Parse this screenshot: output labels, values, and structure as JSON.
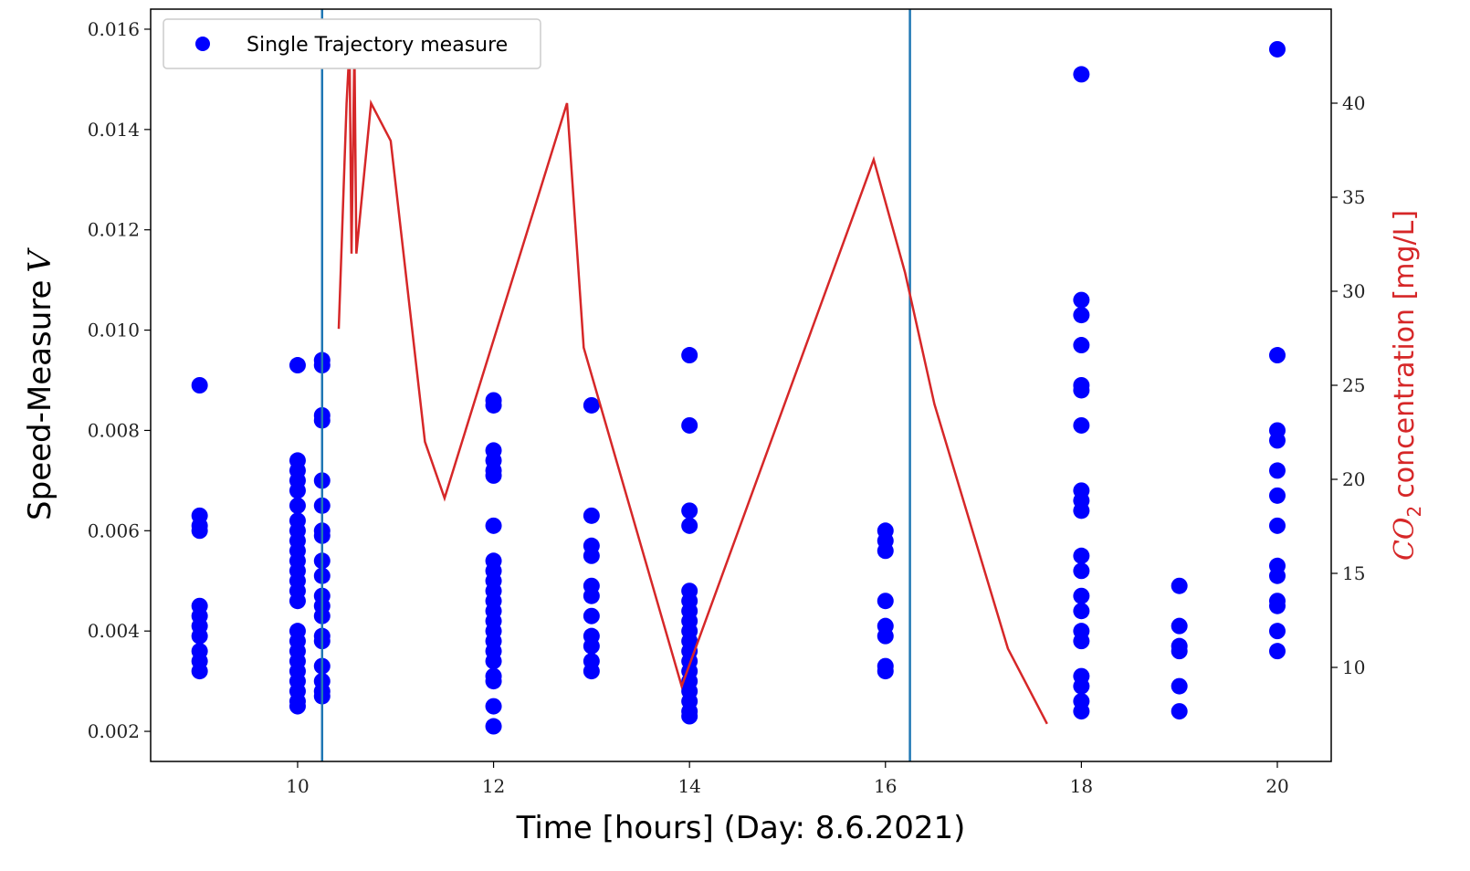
{
  "chart_data": {
    "type": "scatter",
    "xlabel": "Time [hours] (Day: 8.6.2021)",
    "ylabel": "Speed-Measure",
    "ylabel_symbol": "V",
    "y2label_symbol": "CO",
    "y2label_subscript": "2",
    "y2label": "concentration [mg/L]",
    "xlim": [
      8.5,
      20.55
    ],
    "ylim": [
      0.0014,
      0.0164
    ],
    "y2lim": [
      5.0,
      45.0
    ],
    "xticks": [
      10,
      12,
      14,
      16,
      18,
      20
    ],
    "yticks": [
      0.002,
      0.004,
      0.006,
      0.008,
      0.01,
      0.012,
      0.014,
      0.016
    ],
    "yticks_labels": [
      "0.002",
      "0.004",
      "0.006",
      "0.008",
      "0.010",
      "0.012",
      "0.014",
      "0.016"
    ],
    "y2ticks": [
      10,
      15,
      20,
      25,
      30,
      35,
      40
    ],
    "grid": false,
    "legend_position": "top-left",
    "colors": {
      "scatter": "#0000ff",
      "co2_line": "#d62728",
      "vlines": "#1f77b4",
      "y2label": "#d62728"
    },
    "vlines_x": [
      10.25,
      16.25
    ],
    "series": [
      {
        "name": "Single Trajectory measure",
        "type": "scatter",
        "axis": "left",
        "points": [
          [
            9,
            0.0089
          ],
          [
            9,
            0.0063
          ],
          [
            9,
            0.0061
          ],
          [
            9,
            0.006
          ],
          [
            9,
            0.0045
          ],
          [
            9,
            0.0043
          ],
          [
            9,
            0.0041
          ],
          [
            9,
            0.0039
          ],
          [
            9,
            0.0036
          ],
          [
            9,
            0.0034
          ],
          [
            9,
            0.0032
          ],
          [
            10,
            0.0093
          ],
          [
            10,
            0.0074
          ],
          [
            10,
            0.0072
          ],
          [
            10,
            0.007
          ],
          [
            10,
            0.0068
          ],
          [
            10,
            0.0065
          ],
          [
            10,
            0.0062
          ],
          [
            10,
            0.006
          ],
          [
            10,
            0.0058
          ],
          [
            10,
            0.0056
          ],
          [
            10,
            0.0054
          ],
          [
            10,
            0.0052
          ],
          [
            10,
            0.005
          ],
          [
            10,
            0.0048
          ],
          [
            10,
            0.0046
          ],
          [
            10,
            0.004
          ],
          [
            10,
            0.0038
          ],
          [
            10,
            0.0036
          ],
          [
            10,
            0.0034
          ],
          [
            10,
            0.0032
          ],
          [
            10,
            0.003
          ],
          [
            10,
            0.0028
          ],
          [
            10,
            0.0026
          ],
          [
            10,
            0.0025
          ],
          [
            10.25,
            0.0094
          ],
          [
            10.25,
            0.0093
          ],
          [
            10.25,
            0.0083
          ],
          [
            10.25,
            0.0082
          ],
          [
            10.25,
            0.007
          ],
          [
            10.25,
            0.0065
          ],
          [
            10.25,
            0.006
          ],
          [
            10.25,
            0.0059
          ],
          [
            10.25,
            0.0054
          ],
          [
            10.25,
            0.0051
          ],
          [
            10.25,
            0.0047
          ],
          [
            10.25,
            0.0045
          ],
          [
            10.25,
            0.0043
          ],
          [
            10.25,
            0.0039
          ],
          [
            10.25,
            0.0038
          ],
          [
            10.25,
            0.0033
          ],
          [
            10.25,
            0.003
          ],
          [
            10.25,
            0.0028
          ],
          [
            10.25,
            0.0027
          ],
          [
            12,
            0.0086
          ],
          [
            12,
            0.0085
          ],
          [
            12,
            0.0076
          ],
          [
            12,
            0.0074
          ],
          [
            12,
            0.0072
          ],
          [
            12,
            0.0071
          ],
          [
            12,
            0.0061
          ],
          [
            12,
            0.0054
          ],
          [
            12,
            0.0052
          ],
          [
            12,
            0.005
          ],
          [
            12,
            0.0048
          ],
          [
            12,
            0.0046
          ],
          [
            12,
            0.0044
          ],
          [
            12,
            0.0042
          ],
          [
            12,
            0.004
          ],
          [
            12,
            0.0038
          ],
          [
            12,
            0.0036
          ],
          [
            12,
            0.0034
          ],
          [
            12,
            0.0031
          ],
          [
            12,
            0.003
          ],
          [
            12,
            0.0025
          ],
          [
            12,
            0.0021
          ],
          [
            13,
            0.0085
          ],
          [
            13,
            0.0063
          ],
          [
            13,
            0.0057
          ],
          [
            13,
            0.0055
          ],
          [
            13,
            0.0049
          ],
          [
            13,
            0.0047
          ],
          [
            13,
            0.0043
          ],
          [
            13,
            0.0039
          ],
          [
            13,
            0.0037
          ],
          [
            13,
            0.0034
          ],
          [
            13,
            0.0032
          ],
          [
            14,
            0.0095
          ],
          [
            14,
            0.0081
          ],
          [
            14,
            0.0064
          ],
          [
            14,
            0.0061
          ],
          [
            14,
            0.0048
          ],
          [
            14,
            0.0046
          ],
          [
            14,
            0.0044
          ],
          [
            14,
            0.0042
          ],
          [
            14,
            0.004
          ],
          [
            14,
            0.0038
          ],
          [
            14,
            0.0036
          ],
          [
            14,
            0.0034
          ],
          [
            14,
            0.0032
          ],
          [
            14,
            0.003
          ],
          [
            14,
            0.0028
          ],
          [
            14,
            0.0026
          ],
          [
            14,
            0.0024
          ],
          [
            14,
            0.0023
          ],
          [
            16,
            0.006
          ],
          [
            16,
            0.0058
          ],
          [
            16,
            0.0056
          ],
          [
            16,
            0.0046
          ],
          [
            16,
            0.0041
          ],
          [
            16,
            0.0039
          ],
          [
            16,
            0.0033
          ],
          [
            16,
            0.0032
          ],
          [
            18,
            0.0151
          ],
          [
            18,
            0.0106
          ],
          [
            18,
            0.0103
          ],
          [
            18,
            0.0097
          ],
          [
            18,
            0.0089
          ],
          [
            18,
            0.0088
          ],
          [
            18,
            0.0081
          ],
          [
            18,
            0.0068
          ],
          [
            18,
            0.0066
          ],
          [
            18,
            0.0064
          ],
          [
            18,
            0.0055
          ],
          [
            18,
            0.0052
          ],
          [
            18,
            0.0047
          ],
          [
            18,
            0.0044
          ],
          [
            18,
            0.004
          ],
          [
            18,
            0.0038
          ],
          [
            18,
            0.0031
          ],
          [
            18,
            0.0029
          ],
          [
            18,
            0.0026
          ],
          [
            18,
            0.0024
          ],
          [
            19,
            0.0049
          ],
          [
            19,
            0.0041
          ],
          [
            19,
            0.0037
          ],
          [
            19,
            0.0036
          ],
          [
            19,
            0.0029
          ],
          [
            19,
            0.0024
          ],
          [
            20,
            0.0156
          ],
          [
            20,
            0.0095
          ],
          [
            20,
            0.008
          ],
          [
            20,
            0.0078
          ],
          [
            20,
            0.0072
          ],
          [
            20,
            0.0067
          ],
          [
            20,
            0.0061
          ],
          [
            20,
            0.0053
          ],
          [
            20,
            0.0051
          ],
          [
            20,
            0.0046
          ],
          [
            20,
            0.0045
          ],
          [
            20,
            0.004
          ],
          [
            20,
            0.0036
          ]
        ]
      },
      {
        "type": "line",
        "axis": "right",
        "points": [
          [
            10.42,
            28
          ],
          [
            10.5,
            40
          ],
          [
            10.53,
            43
          ],
          [
            10.55,
            32
          ],
          [
            10.58,
            43
          ],
          [
            10.6,
            32
          ],
          [
            10.75,
            40
          ],
          [
            10.95,
            38
          ],
          [
            11.3,
            22
          ],
          [
            11.5,
            19
          ],
          [
            12.75,
            40
          ],
          [
            12.92,
            27
          ],
          [
            13.92,
            9
          ],
          [
            15.88,
            37
          ],
          [
            16.2,
            31
          ],
          [
            16.5,
            24
          ],
          [
            17.25,
            11
          ],
          [
            17.55,
            8
          ],
          [
            17.65,
            7
          ]
        ]
      }
    ]
  }
}
